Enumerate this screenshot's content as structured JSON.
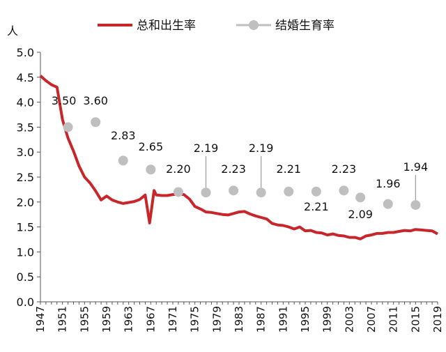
{
  "chart_data": {
    "type": "line",
    "ylabel": "人",
    "ylim": [
      0,
      5.0
    ],
    "yticks": [
      "0.0",
      "0.5",
      "1.0",
      "1.5",
      "2.0",
      "2.5",
      "3.0",
      "3.5",
      "4.0",
      "4.5",
      "5.0"
    ],
    "xlim": [
      1947,
      2019
    ],
    "xticks": [
      "1947",
      "1951",
      "1955",
      "1959",
      "1963",
      "1967",
      "1971",
      "1975",
      "1979",
      "1983",
      "1987",
      "1991",
      "1995",
      "1999",
      "2003",
      "2007",
      "2011",
      "2015",
      "2019"
    ],
    "grid": false,
    "legend_position": "top",
    "series": [
      {
        "name": "总和出生率",
        "kind": "line",
        "color": "#c8262b",
        "points": [
          [
            1947,
            4.53
          ],
          [
            1948,
            4.43
          ],
          [
            1949,
            4.35
          ],
          [
            1950,
            4.3
          ],
          [
            1951,
            3.65
          ],
          [
            1952,
            3.28
          ],
          [
            1953,
            3.02
          ],
          [
            1954,
            2.72
          ],
          [
            1955,
            2.5
          ],
          [
            1956,
            2.38
          ],
          [
            1957,
            2.22
          ],
          [
            1958,
            2.04
          ],
          [
            1959,
            2.12
          ],
          [
            1960,
            2.04
          ],
          [
            1961,
            2.0
          ],
          [
            1962,
            1.97
          ],
          [
            1963,
            1.99
          ],
          [
            1964,
            2.01
          ],
          [
            1965,
            2.05
          ],
          [
            1966,
            2.14
          ],
          [
            1966.8,
            1.58
          ],
          [
            1967.6,
            2.23
          ],
          [
            1968,
            2.14
          ],
          [
            1969,
            2.13
          ],
          [
            1970,
            2.13
          ],
          [
            1971,
            2.15
          ],
          [
            1972,
            2.16
          ],
          [
            1973,
            2.15
          ],
          [
            1974,
            2.06
          ],
          [
            1975,
            1.91
          ],
          [
            1976,
            1.86
          ],
          [
            1977,
            1.8
          ],
          [
            1978,
            1.79
          ],
          [
            1979,
            1.77
          ],
          [
            1980,
            1.75
          ],
          [
            1981,
            1.74
          ],
          [
            1982,
            1.77
          ],
          [
            1983,
            1.8
          ],
          [
            1984,
            1.81
          ],
          [
            1985,
            1.76
          ],
          [
            1986,
            1.72
          ],
          [
            1987,
            1.69
          ],
          [
            1988,
            1.66
          ],
          [
            1989,
            1.57
          ],
          [
            1990,
            1.54
          ],
          [
            1991,
            1.53
          ],
          [
            1992,
            1.5
          ],
          [
            1993,
            1.46
          ],
          [
            1994,
            1.5
          ],
          [
            1995,
            1.42
          ],
          [
            1996,
            1.43
          ],
          [
            1997,
            1.39
          ],
          [
            1998,
            1.38
          ],
          [
            1999,
            1.34
          ],
          [
            2000,
            1.36
          ],
          [
            2001,
            1.33
          ],
          [
            2002,
            1.32
          ],
          [
            2003,
            1.29
          ],
          [
            2004,
            1.29
          ],
          [
            2005,
            1.26
          ],
          [
            2006,
            1.32
          ],
          [
            2007,
            1.34
          ],
          [
            2008,
            1.37
          ],
          [
            2009,
            1.37
          ],
          [
            2010,
            1.39
          ],
          [
            2011,
            1.39
          ],
          [
            2012,
            1.41
          ],
          [
            2013,
            1.43
          ],
          [
            2014,
            1.42
          ],
          [
            2015,
            1.45
          ],
          [
            2016,
            1.44
          ],
          [
            2017,
            1.43
          ],
          [
            2018,
            1.42
          ],
          [
            2019,
            1.36
          ]
        ]
      },
      {
        "name": "结婚生育率",
        "kind": "scatter",
        "color": "#bfbfbf",
        "points": [
          {
            "x": 1952,
            "y": 3.5,
            "label": "3.50"
          },
          {
            "x": 1957,
            "y": 3.6,
            "label": "3.60"
          },
          {
            "x": 1962,
            "y": 2.83,
            "label": "2.83"
          },
          {
            "x": 1967,
            "y": 2.65,
            "label": "2.65"
          },
          {
            "x": 1972,
            "y": 2.2,
            "label": "2.20"
          },
          {
            "x": 1977,
            "y": 2.19,
            "label": "2.19"
          },
          {
            "x": 1982,
            "y": 2.23,
            "label": "2.23"
          },
          {
            "x": 1987,
            "y": 2.19,
            "label": "2.19"
          },
          {
            "x": 1992,
            "y": 2.21,
            "label": "2.21"
          },
          {
            "x": 1997,
            "y": 2.21,
            "label": "2.21"
          },
          {
            "x": 2002,
            "y": 2.23,
            "label": "2.23"
          },
          {
            "x": 2005,
            "y": 2.09,
            "label": "2.09"
          },
          {
            "x": 2010,
            "y": 1.96,
            "label": "1.96"
          },
          {
            "x": 2015,
            "y": 1.94,
            "label": "1.94"
          }
        ]
      }
    ]
  }
}
